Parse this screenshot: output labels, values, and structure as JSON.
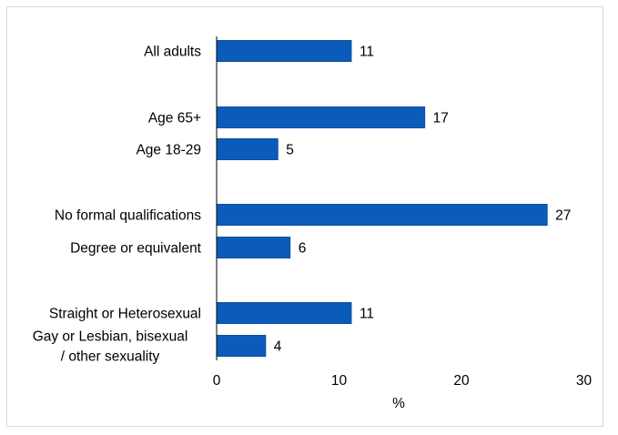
{
  "chart_data": {
    "type": "bar",
    "orientation": "horizontal",
    "title": "",
    "xlabel": "%",
    "ylabel": "",
    "xlim": [
      0,
      30
    ],
    "xticks": [
      "0",
      "10",
      "20",
      "30"
    ],
    "grid": false,
    "legend": "none",
    "bar_color": "#0b5cba",
    "categories": [
      [
        "All adults"
      ],
      [
        "Age 65+"
      ],
      [
        "Age 18-29"
      ],
      [
        "No formal qualifications"
      ],
      [
        "Degree or equivalent"
      ],
      [
        "Straight or Heterosexual"
      ],
      [
        "Gay or Lesbian, bisexual",
        "/ other sexuality"
      ]
    ],
    "values": [
      11,
      17,
      5,
      27,
      6,
      11,
      4
    ],
    "value_labels": [
      "11",
      "17",
      "5",
      "27",
      "6",
      "11",
      "4"
    ]
  }
}
